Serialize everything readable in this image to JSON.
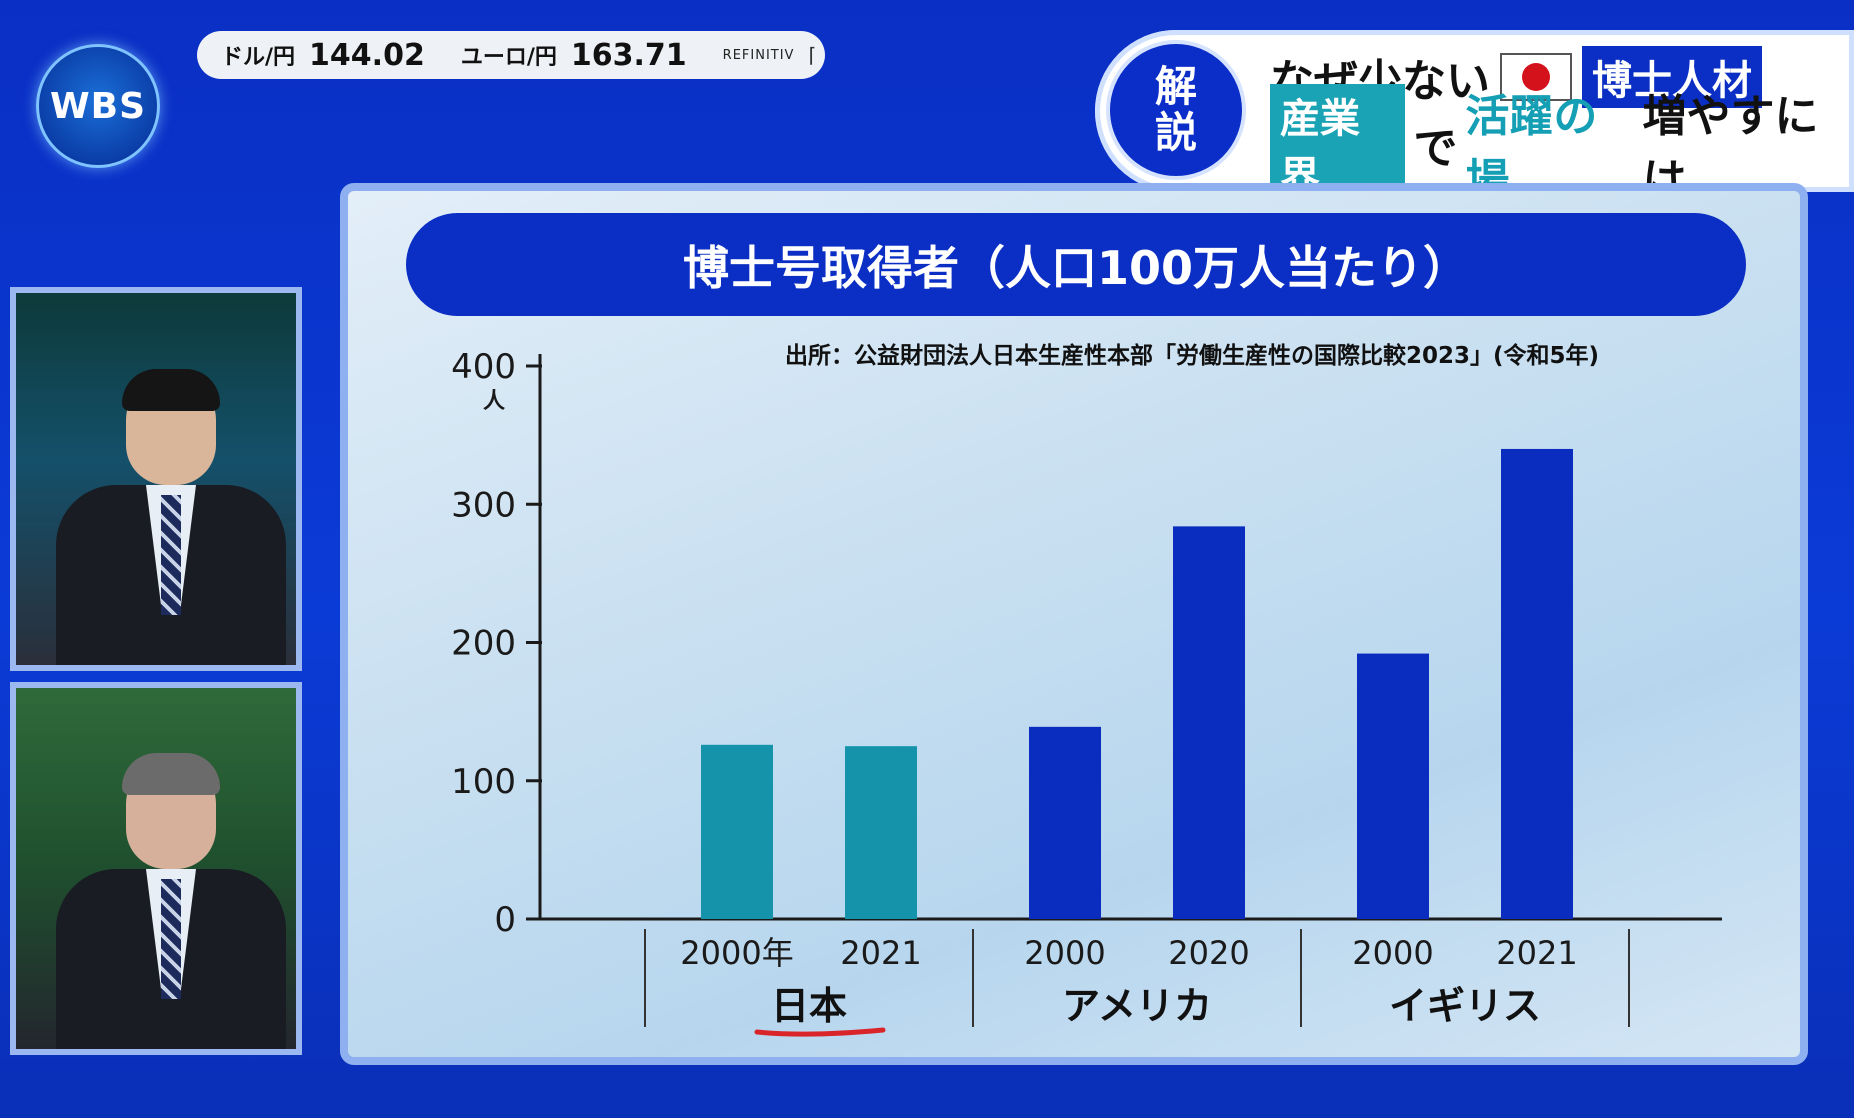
{
  "logo": {
    "text": "WBS"
  },
  "ticker": {
    "usd_label": "ドル/円",
    "usd_value": "144.02",
    "eur_label": "ユーロ/円",
    "eur_value": "163.71",
    "source": "REFINITIV"
  },
  "headline": {
    "badge_line1": "解",
    "badge_line2": "説",
    "line1_text": "なぜ少ない",
    "line1_chip": "博士人材",
    "line2_chip": "産業界",
    "line2_de": "で",
    "line2_accent": "活躍の場",
    "line2_rest": "増やすには"
  },
  "colors": {
    "japan": "#1493aa",
    "others": "#0a2cbf",
    "title_bg": "#0b2fc4"
  },
  "chart_data": {
    "type": "bar",
    "title": "博士号取得者（人口100万人当たり）",
    "source": "出所：公益財団法人日本生産性本部「労働生産性の国際比較2023」(令和5年)",
    "ylabel": "人",
    "ylim": [
      0,
      400
    ],
    "yticks": [
      0,
      100,
      200,
      300,
      400
    ],
    "groups": [
      {
        "name": "日本",
        "categories": [
          "2000年",
          "2021"
        ],
        "values": [
          126,
          125
        ]
      },
      {
        "name": "アメリカ",
        "categories": [
          "2000",
          "2020"
        ],
        "values": [
          139,
          284
        ]
      },
      {
        "name": "イギリス",
        "categories": [
          "2000",
          "2021"
        ],
        "values": [
          192,
          340
        ]
      }
    ]
  }
}
